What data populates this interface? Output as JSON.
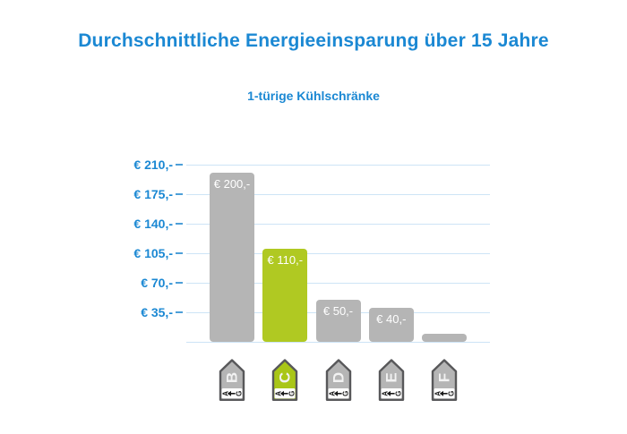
{
  "header": {
    "title": "Durchschnittliche Energieeinsparung über 15 Jahre",
    "subtitle": "1-türige Kühlschränke"
  },
  "colors": {
    "background": "#ffffff",
    "title_blue": "#1b88d3",
    "axis_label_blue": "#1b88d3",
    "gridline_blue": "#cde4f6",
    "tick_blue": "#4d9fd8",
    "bar_gray": "#b5b5b5",
    "bar_green": "#b0c922",
    "bar_value_white": "#ffffff",
    "icon_border_gray": "#58585a",
    "icon_body_gray": "#b5b5b5",
    "icon_body_green": "#a9c617",
    "icon_letter_white": "#f2f2f2",
    "icon_scale_black": "#1a1a1a",
    "icon_strip_white": "#ffffff"
  },
  "chart_data": {
    "type": "bar",
    "title": "Durchschnittliche Energieeinsparung über 15 Jahre",
    "subtitle": "1-türige Kühlschränke",
    "categories": [
      "B",
      "C",
      "D",
      "E",
      "F"
    ],
    "values": [
      200,
      110,
      50,
      40,
      10
    ],
    "bar_labels": [
      "€ 200,-",
      "€ 110,-",
      "€ 50,-",
      "€ 40,-",
      ""
    ],
    "highlight_category": "C",
    "currency": "EUR",
    "xlabel": "",
    "ylabel": "",
    "y_tick_values": [
      35,
      70,
      105,
      140,
      175,
      210
    ],
    "y_tick_labels": [
      "€ 35,-",
      "€ 70,-",
      "€ 105,-",
      "€ 140,-",
      "€ 175,-",
      "€ 210,-"
    ],
    "ylim": [
      0,
      222
    ],
    "grid": true,
    "legend": false,
    "x_axis_icons": {
      "style": "eu-energy-arrow-pointing-up",
      "scale_from": "A",
      "scale_to": "G",
      "arrow_direction": "left-toward-A"
    }
  }
}
